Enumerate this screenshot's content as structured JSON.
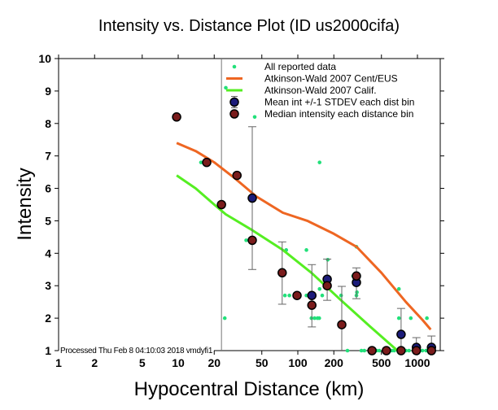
{
  "chart_data": {
    "type": "scatter",
    "title": "Intensity vs. Distance Plot (ID us2000cifa)",
    "xlabel": "Hypocentral Distance (km)",
    "ylabel": "Intensity",
    "xscale": "log",
    "xlim": [
      1,
      1550
    ],
    "ylim": [
      1,
      10
    ],
    "x_ticks": [
      1,
      2,
      5,
      10,
      20,
      50,
      100,
      200,
      500,
      1000
    ],
    "x_tick_labels": [
      "1",
      "2",
      "5",
      "10",
      "20",
      "50",
      "100",
      "200",
      "500",
      "1000"
    ],
    "y_ticks": [
      1,
      2,
      3,
      4,
      5,
      6,
      7,
      8,
      9,
      10
    ],
    "y_tick_labels": [
      "1",
      "2",
      "3",
      "4",
      "5",
      "6",
      "7",
      "8",
      "9",
      "10"
    ],
    "grid": false,
    "legend_position": "top-right",
    "reference_line_x": 23,
    "footnote": "Processed Thu Feb  8 04:10:03 2018 vmdyfi1",
    "colors": {
      "all_data": "#22e07a",
      "cent_eus": "#ee6622",
      "calif": "#55ee22",
      "mean": "#1c1c7a",
      "median": "#7a1c1c",
      "errorbar": "#666666"
    },
    "legend": [
      {
        "label": "All reported data",
        "marker": "dot"
      },
      {
        "label": "Atkinson-Wald 2007 Cent/EUS",
        "marker": "line-orange"
      },
      {
        "label": "Atkinson-Wald 2007 Calif.",
        "marker": "line-green"
      },
      {
        "label": "Mean int +/-1 STDEV each dist bin",
        "marker": "circle-blue"
      },
      {
        "label": "Median intensity each distance bin",
        "marker": "circle-red"
      }
    ],
    "series": [
      {
        "name": "All reported data",
        "points": [
          [
            25,
            9.1
          ],
          [
            43.6,
            8.2
          ],
          [
            15.5,
            6.8
          ],
          [
            152,
            6.8
          ],
          [
            37,
            4.4
          ],
          [
            24.5,
            2.0
          ],
          [
            80,
            4.1
          ],
          [
            118,
            4.1
          ],
          [
            178,
            3.8
          ],
          [
            78,
            2.7
          ],
          [
            85,
            2.7
          ],
          [
            118,
            2.7
          ],
          [
            125,
            2.7
          ],
          [
            152,
            2.9
          ],
          [
            160,
            2.7
          ],
          [
            130,
            2.0
          ],
          [
            138,
            2.0
          ],
          [
            146,
            2.0
          ],
          [
            151,
            2.0
          ],
          [
            230,
            2.7
          ],
          [
            290,
            3.3
          ],
          [
            309,
            2.7
          ],
          [
            312,
            2.8
          ],
          [
            309,
            4.2
          ],
          [
            700,
            2.9
          ],
          [
            700,
            2.0
          ],
          [
            880,
            2.0
          ],
          [
            1200,
            2.0
          ],
          [
            260,
            1.0
          ],
          [
            340,
            1.0
          ],
          [
            360,
            1.0
          ],
          [
            455,
            1.0
          ],
          [
            480,
            1.0
          ],
          [
            610,
            1.0
          ],
          [
            640,
            1.0
          ],
          [
            800,
            1.0
          ],
          [
            850,
            1.0
          ],
          [
            1100,
            1.0
          ],
          [
            1180,
            1.0
          ]
        ]
      },
      {
        "name": "Atkinson-Wald 2007 Cent/EUS",
        "points": [
          [
            9.7,
            7.4
          ],
          [
            14,
            7.15
          ],
          [
            20,
            6.8
          ],
          [
            30,
            6.3
          ],
          [
            45,
            5.75
          ],
          [
            75,
            5.25
          ],
          [
            120,
            5.0
          ],
          [
            200,
            4.6
          ],
          [
            310,
            4.2
          ],
          [
            500,
            3.4
          ],
          [
            800,
            2.5
          ],
          [
            1100,
            1.95
          ],
          [
            1290,
            1.65
          ]
        ]
      },
      {
        "name": "Atkinson-Wald 2007 Calif.",
        "points": [
          [
            9.7,
            6.4
          ],
          [
            14,
            6.0
          ],
          [
            20,
            5.5
          ],
          [
            25,
            5.2
          ],
          [
            40,
            4.75
          ],
          [
            75,
            4.1
          ],
          [
            130,
            3.4
          ],
          [
            230,
            2.55
          ],
          [
            400,
            1.75
          ],
          [
            680,
            1.0
          ]
        ]
      },
      {
        "name": "Mean int +/-1 STDEV each dist bin",
        "points": [
          {
            "x": 41.6,
            "y": 5.7,
            "lo": 3.5,
            "hi": 7.9
          },
          {
            "x": 131,
            "y": 2.7,
            "lo": 1.73,
            "hi": 3.65
          },
          {
            "x": 176,
            "y": 3.2,
            "lo": 2.55,
            "hi": 3.82
          },
          {
            "x": 309,
            "y": 3.1,
            "lo": 2.6,
            "hi": 3.55
          },
          {
            "x": 730,
            "y": 1.5,
            "lo": 1.0,
            "hi": 2.3
          },
          {
            "x": 980,
            "y": 1.1,
            "lo": 1.0,
            "hi": 1.4
          },
          {
            "x": 1310,
            "y": 1.1,
            "lo": 1.0,
            "hi": 1.45
          }
        ]
      },
      {
        "name": "Median intensity each distance bin",
        "points": [
          [
            9.7,
            8.2
          ],
          [
            17.3,
            6.8
          ],
          [
            23,
            5.5
          ],
          [
            31,
            6.4
          ],
          [
            41.6,
            4.4
          ],
          [
            74,
            3.4
          ],
          [
            98.5,
            2.7
          ],
          [
            131,
            2.4
          ],
          [
            176,
            3.0
          ],
          [
            233,
            1.8
          ],
          [
            309,
            3.3
          ],
          [
            417,
            1.0
          ],
          [
            550,
            1.0
          ],
          [
            730,
            1.0
          ],
          [
            980,
            1.0
          ],
          [
            1310,
            1.0
          ]
        ]
      }
    ],
    "unbinned_errorbars": [
      {
        "x": 23,
        "lo": 1.0,
        "hi": 10.0
      },
      {
        "x": 74,
        "lo": 2.43,
        "hi": 4.35
      },
      {
        "x": 233,
        "lo": 1.0,
        "hi": 2.98
      }
    ]
  }
}
